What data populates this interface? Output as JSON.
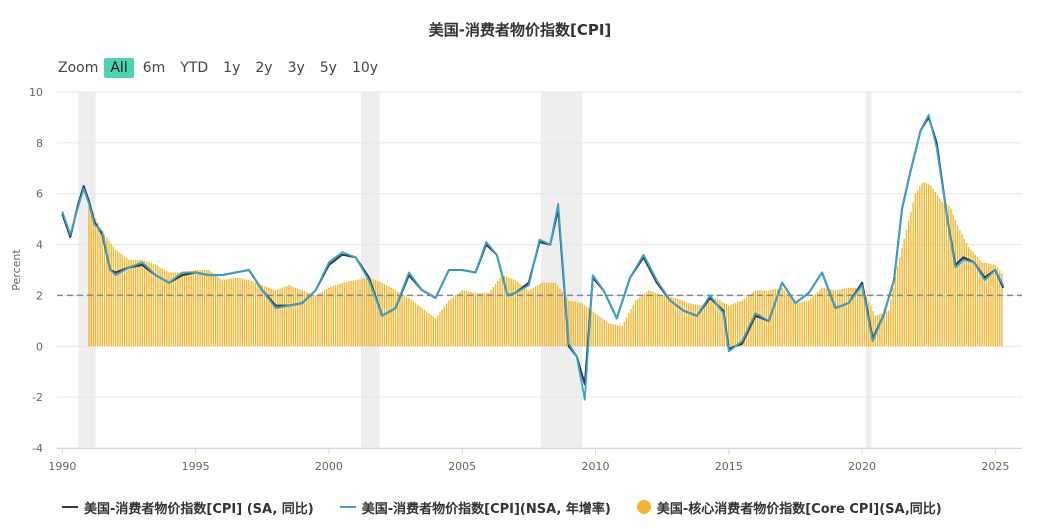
{
  "title": "美国-消费者物价指数[CPI]",
  "zoom": {
    "label": "Zoom",
    "buttons": [
      "All",
      "6m",
      "YTD",
      "1y",
      "2y",
      "3y",
      "5y",
      "10y"
    ],
    "active": "All"
  },
  "colors": {
    "cpi_sa": "#2f3a45",
    "cpi_nsa": "#3aa3c9",
    "core": "#f2b632",
    "recession": "#eeeeee",
    "reference": "#888888",
    "grid": "#e6e6e6"
  },
  "chart_data": {
    "type": "line",
    "ylabel": "Percent",
    "ylim": [
      -4,
      10
    ],
    "yticks": [
      -4,
      -2,
      0,
      2,
      4,
      6,
      8,
      10
    ],
    "xlim": [
      1989.8,
      2026.0
    ],
    "xticks": [
      1990,
      1995,
      2000,
      2005,
      2010,
      2015,
      2020,
      2025
    ],
    "reference_line": 2,
    "recessions": [
      [
        1990.6,
        1991.25
      ],
      [
        2001.2,
        2001.9
      ],
      [
        2007.95,
        2009.5
      ],
      [
        2020.15,
        2020.35
      ]
    ],
    "series": [
      {
        "name": "美国-消费者物价指数[CPI] (SA, 同比)",
        "kind": "line",
        "x": [
          1990.0,
          1990.3,
          1990.6,
          1990.8,
          1991.0,
          1991.2,
          1991.5,
          1991.8,
          1992.0,
          1992.5,
          1993.0,
          1993.5,
          1994.0,
          1994.5,
          1995.0,
          1995.5,
          1996.0,
          1996.5,
          1997.0,
          1997.5,
          1998.0,
          1998.5,
          1999.0,
          1999.5,
          2000.0,
          2000.5,
          2001.0,
          2001.5,
          2002.0,
          2002.5,
          2003.0,
          2003.5,
          2004.0,
          2004.5,
          2005.0,
          2005.5,
          2005.9,
          2006.3,
          2006.7,
          2007.0,
          2007.5,
          2007.9,
          2008.3,
          2008.6,
          2009.0,
          2009.3,
          2009.6,
          2009.9,
          2010.3,
          2010.8,
          2011.3,
          2011.8,
          2012.3,
          2012.8,
          2013.3,
          2013.8,
          2014.3,
          2014.8,
          2015.0,
          2015.5,
          2016.0,
          2016.5,
          2017.0,
          2017.5,
          2018.0,
          2018.5,
          2019.0,
          2019.5,
          2020.0,
          2020.4,
          2020.8,
          2021.2,
          2021.5,
          2021.8,
          2022.2,
          2022.5,
          2022.8,
          2023.2,
          2023.5,
          2023.8,
          2024.2,
          2024.6,
          2025.0,
          2025.3
        ],
        "y": [
          5.2,
          4.3,
          5.6,
          6.3,
          5.7,
          4.9,
          4.4,
          3.0,
          2.9,
          3.1,
          3.2,
          2.8,
          2.5,
          2.8,
          2.9,
          2.8,
          2.8,
          2.9,
          3.0,
          2.2,
          1.6,
          1.6,
          1.7,
          2.2,
          3.2,
          3.6,
          3.5,
          2.7,
          1.2,
          1.5,
          2.8,
          2.2,
          1.9,
          3.0,
          3.0,
          2.9,
          4.0,
          3.6,
          2.0,
          2.1,
          2.5,
          4.1,
          4.0,
          5.4,
          0.0,
          -0.4,
          -1.5,
          2.7,
          2.2,
          1.1,
          2.7,
          3.5,
          2.5,
          1.8,
          1.4,
          1.2,
          1.9,
          1.4,
          -0.1,
          0.1,
          1.2,
          1.0,
          2.5,
          1.7,
          2.1,
          2.9,
          1.5,
          1.7,
          2.5,
          0.3,
          1.2,
          2.6,
          5.4,
          6.8,
          8.5,
          9.0,
          8.0,
          5.0,
          3.2,
          3.5,
          3.3,
          2.7,
          3.0,
          2.3
        ]
      },
      {
        "name": "美国-消费者物价指数[CPI](NSA, 年增率)",
        "kind": "line",
        "x": [
          1990.0,
          1990.3,
          1990.6,
          1990.8,
          1991.0,
          1991.2,
          1991.5,
          1991.8,
          1992.0,
          1992.5,
          1993.0,
          1993.5,
          1994.0,
          1994.5,
          1995.0,
          1995.5,
          1996.0,
          1996.5,
          1997.0,
          1997.5,
          1998.0,
          1998.5,
          1999.0,
          1999.5,
          2000.0,
          2000.5,
          2001.0,
          2001.5,
          2002.0,
          2002.5,
          2003.0,
          2003.5,
          2004.0,
          2004.5,
          2005.0,
          2005.5,
          2005.9,
          2006.3,
          2006.7,
          2007.0,
          2007.5,
          2007.9,
          2008.3,
          2008.6,
          2009.0,
          2009.3,
          2009.6,
          2009.9,
          2010.3,
          2010.8,
          2011.3,
          2011.8,
          2012.3,
          2012.8,
          2013.3,
          2013.8,
          2014.3,
          2014.8,
          2015.0,
          2015.5,
          2016.0,
          2016.5,
          2017.0,
          2017.5,
          2018.0,
          2018.5,
          2019.0,
          2019.5,
          2020.0,
          2020.4,
          2020.8,
          2021.2,
          2021.5,
          2021.8,
          2022.2,
          2022.5,
          2022.8,
          2023.2,
          2023.5,
          2023.8,
          2024.2,
          2024.6,
          2025.0,
          2025.3
        ],
        "y": [
          5.3,
          4.4,
          5.5,
          6.2,
          5.6,
          4.8,
          4.5,
          3.0,
          2.8,
          3.1,
          3.3,
          2.8,
          2.5,
          2.9,
          2.9,
          2.8,
          2.8,
          2.9,
          3.0,
          2.2,
          1.5,
          1.6,
          1.7,
          2.2,
          3.3,
          3.7,
          3.5,
          2.6,
          1.2,
          1.5,
          2.9,
          2.2,
          1.9,
          3.0,
          3.0,
          2.9,
          4.1,
          3.6,
          2.0,
          2.1,
          2.4,
          4.2,
          4.0,
          5.6,
          0.1,
          -0.4,
          -2.1,
          2.8,
          2.2,
          1.1,
          2.7,
          3.6,
          2.6,
          1.8,
          1.4,
          1.2,
          2.0,
          1.3,
          -0.2,
          0.2,
          1.3,
          1.0,
          2.5,
          1.7,
          2.1,
          2.9,
          1.5,
          1.7,
          2.4,
          0.2,
          1.2,
          2.6,
          5.4,
          6.8,
          8.5,
          9.1,
          7.8,
          5.0,
          3.1,
          3.4,
          3.3,
          2.6,
          3.0,
          2.4
        ]
      },
      {
        "name": "美国-核心消费者物价指数[Core CPI](SA,同比)",
        "kind": "bar",
        "x": [
          1991.0,
          1991.5,
          1992.0,
          1992.5,
          1993.0,
          1993.5,
          1994.0,
          1994.5,
          1995.0,
          1995.5,
          1996.0,
          1996.5,
          1997.0,
          1997.5,
          1998.0,
          1998.5,
          1999.0,
          1999.5,
          2000.0,
          2000.5,
          2001.0,
          2001.5,
          2002.0,
          2002.5,
          2003.0,
          2003.5,
          2004.0,
          2004.5,
          2005.0,
          2005.5,
          2006.0,
          2006.5,
          2007.0,
          2007.5,
          2008.0,
          2008.5,
          2009.0,
          2009.5,
          2010.0,
          2010.5,
          2011.0,
          2011.5,
          2012.0,
          2012.5,
          2013.0,
          2013.5,
          2014.0,
          2014.5,
          2015.0,
          2015.5,
          2016.0,
          2016.5,
          2017.0,
          2017.5,
          2018.0,
          2018.5,
          2019.0,
          2019.5,
          2020.0,
          2020.5,
          2021.0,
          2021.3,
          2021.6,
          2022.0,
          2022.3,
          2022.6,
          2023.0,
          2023.3,
          2023.6,
          2024.0,
          2024.5,
          2025.0,
          2025.3
        ],
        "y": [
          5.6,
          4.5,
          3.8,
          3.4,
          3.4,
          3.2,
          2.9,
          2.9,
          3.0,
          3.0,
          2.6,
          2.7,
          2.6,
          2.4,
          2.2,
          2.4,
          2.2,
          2.0,
          2.3,
          2.5,
          2.6,
          2.7,
          2.5,
          2.2,
          1.9,
          1.5,
          1.1,
          1.8,
          2.2,
          2.1,
          2.1,
          2.8,
          2.6,
          2.2,
          2.5,
          2.5,
          1.8,
          1.7,
          1.3,
          0.9,
          0.8,
          1.8,
          2.2,
          2.0,
          1.9,
          1.7,
          1.6,
          1.9,
          1.6,
          1.8,
          2.2,
          2.2,
          2.3,
          1.7,
          1.8,
          2.3,
          2.2,
          2.3,
          2.3,
          1.2,
          1.4,
          3.0,
          4.3,
          6.0,
          6.5,
          6.3,
          5.7,
          5.5,
          4.7,
          3.9,
          3.3,
          3.2,
          2.8
        ]
      }
    ]
  },
  "legend": [
    {
      "label": "美国-消费者物价指数[CPI] (SA, 同比)",
      "swatch": "line",
      "color": "#2f3a45"
    },
    {
      "label": "美国-消费者物价指数[CPI](NSA, 年增率)",
      "swatch": "line",
      "color": "#3aa3c9"
    },
    {
      "label": "美国-核心消费者物价指数[Core CPI](SA,同比)",
      "swatch": "dot",
      "color": "#f2b632"
    }
  ]
}
